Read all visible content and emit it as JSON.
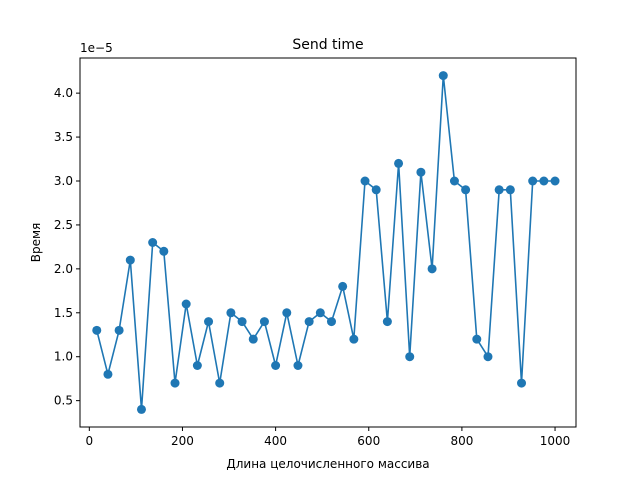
{
  "chart_data": {
    "type": "line",
    "title": "Send time",
    "xlabel": "Длина целочисленного массива",
    "ylabel": "Время",
    "y_offset_label": "1e−5",
    "y_scale": 1e-05,
    "xlim": [
      -20,
      1045
    ],
    "ylim": [
      0.2,
      4.4
    ],
    "xticks": [
      0,
      200,
      400,
      600,
      800,
      1000
    ],
    "yticks": [
      0.5,
      1.0,
      1.5,
      2.0,
      2.5,
      3.0,
      3.5,
      4.0
    ],
    "ytick_labels": [
      "0.5",
      "1.0",
      "1.5",
      "2.0",
      "2.5",
      "3.0",
      "3.5",
      "4.0"
    ],
    "grid": false,
    "series": [
      {
        "color": "#1f77b4",
        "marker": "circle",
        "x": [
          16,
          40,
          64,
          88,
          112,
          136,
          160,
          184,
          208,
          232,
          256,
          280,
          304,
          328,
          352,
          376,
          400,
          424,
          448,
          472,
          496,
          520,
          544,
          568,
          592,
          616,
          640,
          664,
          688,
          712,
          736,
          760,
          784,
          808,
          832,
          856,
          880,
          904,
          928,
          952,
          976,
          1000
        ],
        "y": [
          1.3,
          0.8,
          1.3,
          2.1,
          0.4,
          2.3,
          2.2,
          0.7,
          1.6,
          0.9,
          1.4,
          0.7,
          1.5,
          1.4,
          1.2,
          1.4,
          0.9,
          1.5,
          0.9,
          1.4,
          1.5,
          1.4,
          1.8,
          1.2,
          3.0,
          2.9,
          1.4,
          3.2,
          1.0,
          3.1,
          2.0,
          4.2,
          3.0,
          2.9,
          1.2,
          1.0,
          2.9,
          2.9,
          0.7,
          3.0,
          3.0,
          3.0
        ]
      }
    ]
  }
}
